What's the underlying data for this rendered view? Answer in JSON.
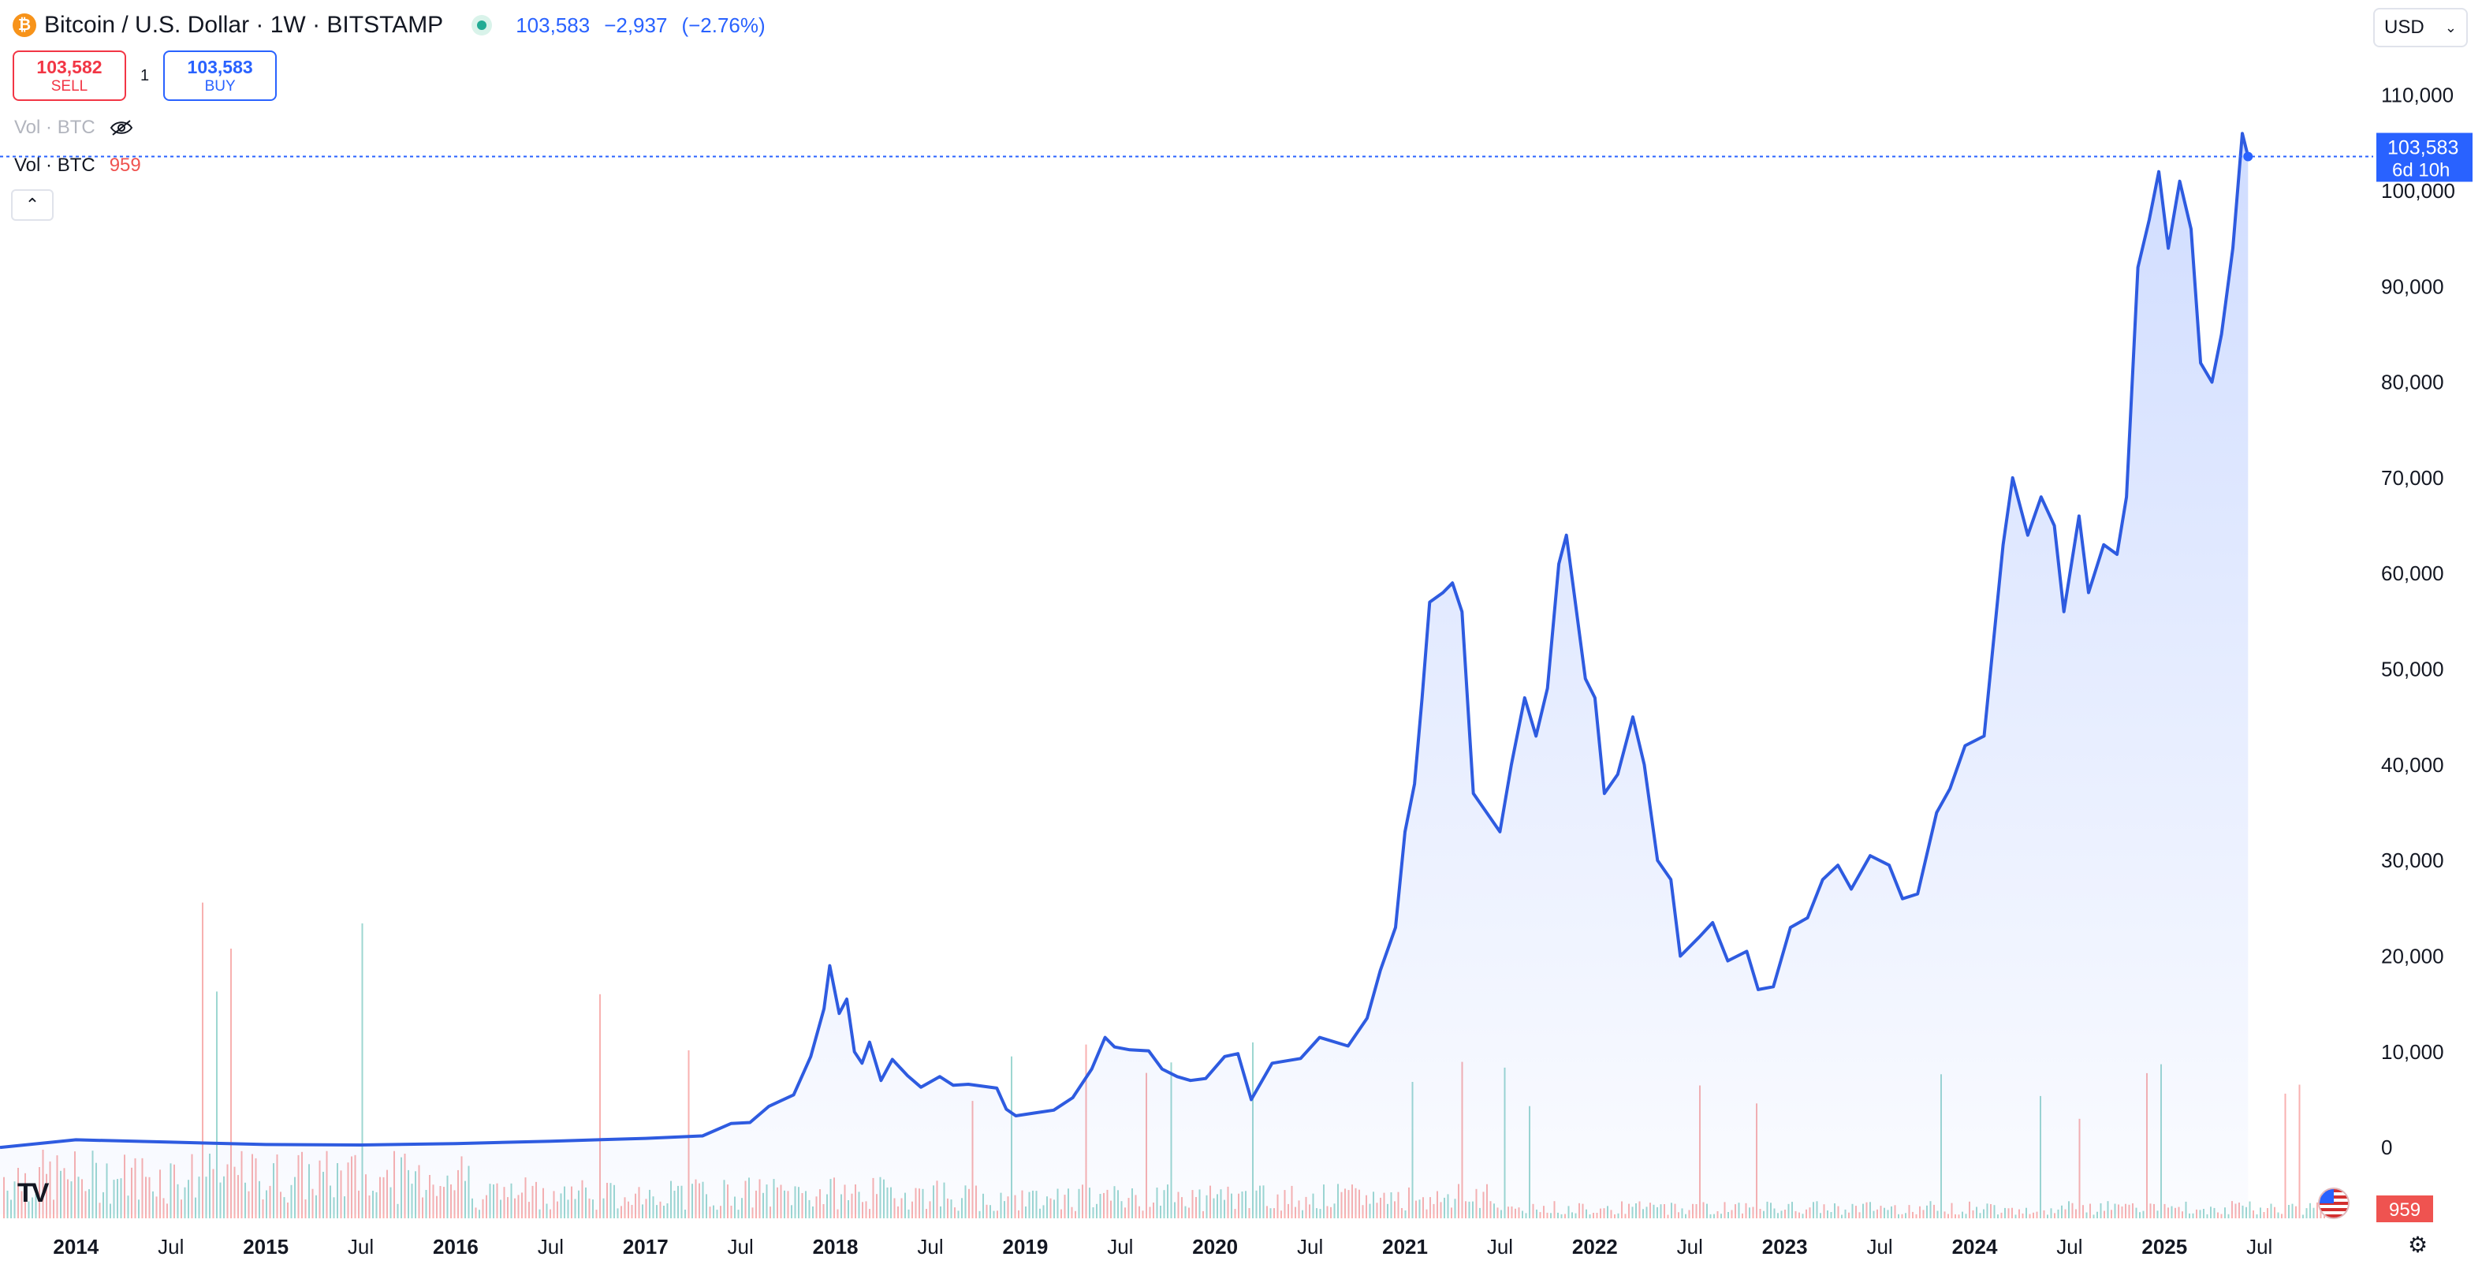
{
  "header": {
    "symbol_title": "Bitcoin / U.S. Dollar · 1W · BITSTAMP",
    "last_price": "103,583",
    "change": "−2,937",
    "change_pct": "(−2.76%)",
    "market_status_color": "#22ab94"
  },
  "trade": {
    "sell_price": "103,582",
    "sell_label": "SELL",
    "spread": "1",
    "buy_price": "103,583",
    "buy_label": "BUY"
  },
  "volume_hidden": {
    "label": "Vol · BTC",
    "icon": "eye-crossed-icon"
  },
  "volume_legend": {
    "label": "Vol · BTC",
    "value": "959"
  },
  "currency": {
    "selected": "USD"
  },
  "price_tag": {
    "price": "103,583",
    "countdown": "6d 10h"
  },
  "volume_tag": "959",
  "brand": {
    "logo_text": "TV"
  },
  "colors": {
    "line": "#2e5be0",
    "up": "#26a69a",
    "down": "#ef5350",
    "accent": "#2962ff"
  },
  "chart_data": {
    "type": "area",
    "title": "Bitcoin / U.S. Dollar · 1W · BITSTAMP",
    "xlabel": "",
    "ylabel": "",
    "ylim": [
      -7000,
      115000
    ],
    "y_ticks": [
      0,
      10000,
      20000,
      30000,
      40000,
      50000,
      60000,
      70000,
      80000,
      90000,
      100000,
      110000
    ],
    "y_tick_labels": [
      "0",
      "10,000",
      "20,000",
      "30,000",
      "40,000",
      "50,000",
      "60,000",
      "70,000",
      "80,000",
      "90,000",
      "100,000",
      "110,000"
    ],
    "x_range": [
      2013.6,
      2025.85
    ],
    "x_ticks": [
      {
        "value": 2014.0,
        "label": "2014",
        "bold": true
      },
      {
        "value": 2014.5,
        "label": "Jul",
        "bold": false
      },
      {
        "value": 2015.0,
        "label": "2015",
        "bold": true
      },
      {
        "value": 2015.5,
        "label": "Jul",
        "bold": false
      },
      {
        "value": 2016.0,
        "label": "2016",
        "bold": true
      },
      {
        "value": 2016.5,
        "label": "Jul",
        "bold": false
      },
      {
        "value": 2017.0,
        "label": "2017",
        "bold": true
      },
      {
        "value": 2017.5,
        "label": "Jul",
        "bold": false
      },
      {
        "value": 2018.0,
        "label": "2018",
        "bold": true
      },
      {
        "value": 2018.5,
        "label": "Jul",
        "bold": false
      },
      {
        "value": 2019.0,
        "label": "2019",
        "bold": true
      },
      {
        "value": 2019.5,
        "label": "Jul",
        "bold": false
      },
      {
        "value": 2020.0,
        "label": "2020",
        "bold": true
      },
      {
        "value": 2020.5,
        "label": "Jul",
        "bold": false
      },
      {
        "value": 2021.0,
        "label": "2021",
        "bold": true
      },
      {
        "value": 2021.5,
        "label": "Jul",
        "bold": false
      },
      {
        "value": 2022.0,
        "label": "2022",
        "bold": true
      },
      {
        "value": 2022.5,
        "label": "Jul",
        "bold": false
      },
      {
        "value": 2023.0,
        "label": "2023",
        "bold": true
      },
      {
        "value": 2023.5,
        "label": "Jul",
        "bold": false
      },
      {
        "value": 2024.0,
        "label": "2024",
        "bold": true
      },
      {
        "value": 2024.5,
        "label": "Jul",
        "bold": false
      },
      {
        "value": 2025.0,
        "label": "2025",
        "bold": true
      },
      {
        "value": 2025.5,
        "label": "Jul",
        "bold": false
      }
    ],
    "grid": false,
    "last_value": 103583,
    "series": [
      {
        "name": "BTC/USD",
        "points": [
          [
            2013.6,
            0
          ],
          [
            2014.0,
            800
          ],
          [
            2014.5,
            550
          ],
          [
            2015.0,
            300
          ],
          [
            2015.5,
            250
          ],
          [
            2016.0,
            400
          ],
          [
            2016.5,
            650
          ],
          [
            2017.0,
            950
          ],
          [
            2017.3,
            1200
          ],
          [
            2017.45,
            2500
          ],
          [
            2017.55,
            2600
          ],
          [
            2017.65,
            4300
          ],
          [
            2017.78,
            5500
          ],
          [
            2017.87,
            9500
          ],
          [
            2017.94,
            14500
          ],
          [
            2017.97,
            19000
          ],
          [
            2018.02,
            14000
          ],
          [
            2018.06,
            15500
          ],
          [
            2018.1,
            10000
          ],
          [
            2018.14,
            8800
          ],
          [
            2018.18,
            11000
          ],
          [
            2018.24,
            7000
          ],
          [
            2018.3,
            9200
          ],
          [
            2018.38,
            7500
          ],
          [
            2018.45,
            6300
          ],
          [
            2018.55,
            7400
          ],
          [
            2018.62,
            6500
          ],
          [
            2018.7,
            6600
          ],
          [
            2018.85,
            6200
          ],
          [
            2018.9,
            4000
          ],
          [
            2018.95,
            3300
          ],
          [
            2019.05,
            3600
          ],
          [
            2019.15,
            3900
          ],
          [
            2019.25,
            5200
          ],
          [
            2019.35,
            8200
          ],
          [
            2019.42,
            11500
          ],
          [
            2019.47,
            10500
          ],
          [
            2019.55,
            10200
          ],
          [
            2019.65,
            10100
          ],
          [
            2019.72,
            8200
          ],
          [
            2019.8,
            7400
          ],
          [
            2019.87,
            7000
          ],
          [
            2019.95,
            7200
          ],
          [
            2020.05,
            9500
          ],
          [
            2020.12,
            9800
          ],
          [
            2020.19,
            5000
          ],
          [
            2020.3,
            8800
          ],
          [
            2020.45,
            9300
          ],
          [
            2020.55,
            11500
          ],
          [
            2020.7,
            10600
          ],
          [
            2020.8,
            13500
          ],
          [
            2020.87,
            18500
          ],
          [
            2020.95,
            23000
          ],
          [
            2021.0,
            33000
          ],
          [
            2021.05,
            38000
          ],
          [
            2021.09,
            47000
          ],
          [
            2021.13,
            57000
          ],
          [
            2021.2,
            58000
          ],
          [
            2021.25,
            59000
          ],
          [
            2021.3,
            56000
          ],
          [
            2021.36,
            37000
          ],
          [
            2021.43,
            35000
          ],
          [
            2021.5,
            33000
          ],
          [
            2021.56,
            40000
          ],
          [
            2021.63,
            47000
          ],
          [
            2021.69,
            43000
          ],
          [
            2021.75,
            48000
          ],
          [
            2021.81,
            61000
          ],
          [
            2021.85,
            64000
          ],
          [
            2021.89,
            58000
          ],
          [
            2021.95,
            49000
          ],
          [
            2022.0,
            47000
          ],
          [
            2022.05,
            37000
          ],
          [
            2022.12,
            39000
          ],
          [
            2022.2,
            45000
          ],
          [
            2022.26,
            40000
          ],
          [
            2022.33,
            30000
          ],
          [
            2022.4,
            28000
          ],
          [
            2022.45,
            20000
          ],
          [
            2022.55,
            22000
          ],
          [
            2022.62,
            23500
          ],
          [
            2022.7,
            19500
          ],
          [
            2022.8,
            20500
          ],
          [
            2022.86,
            16500
          ],
          [
            2022.94,
            16800
          ],
          [
            2023.03,
            23000
          ],
          [
            2023.12,
            24000
          ],
          [
            2023.2,
            28000
          ],
          [
            2023.28,
            29500
          ],
          [
            2023.35,
            27000
          ],
          [
            2023.45,
            30500
          ],
          [
            2023.55,
            29500
          ],
          [
            2023.62,
            26000
          ],
          [
            2023.7,
            26500
          ],
          [
            2023.8,
            35000
          ],
          [
            2023.87,
            37500
          ],
          [
            2023.95,
            42000
          ],
          [
            2024.05,
            43000
          ],
          [
            2024.15,
            63000
          ],
          [
            2024.2,
            70000
          ],
          [
            2024.28,
            64000
          ],
          [
            2024.35,
            68000
          ],
          [
            2024.42,
            65000
          ],
          [
            2024.47,
            56000
          ],
          [
            2024.55,
            66000
          ],
          [
            2024.6,
            58000
          ],
          [
            2024.68,
            63000
          ],
          [
            2024.75,
            62000
          ],
          [
            2024.8,
            68000
          ],
          [
            2024.86,
            92000
          ],
          [
            2024.92,
            97000
          ],
          [
            2024.97,
            102000
          ],
          [
            2025.02,
            94000
          ],
          [
            2025.08,
            101000
          ],
          [
            2025.14,
            96000
          ],
          [
            2025.19,
            82000
          ],
          [
            2025.25,
            80000
          ],
          [
            2025.3,
            85000
          ],
          [
            2025.36,
            94000
          ],
          [
            2025.41,
            106000
          ],
          [
            2025.44,
            103583
          ]
        ]
      }
    ]
  }
}
